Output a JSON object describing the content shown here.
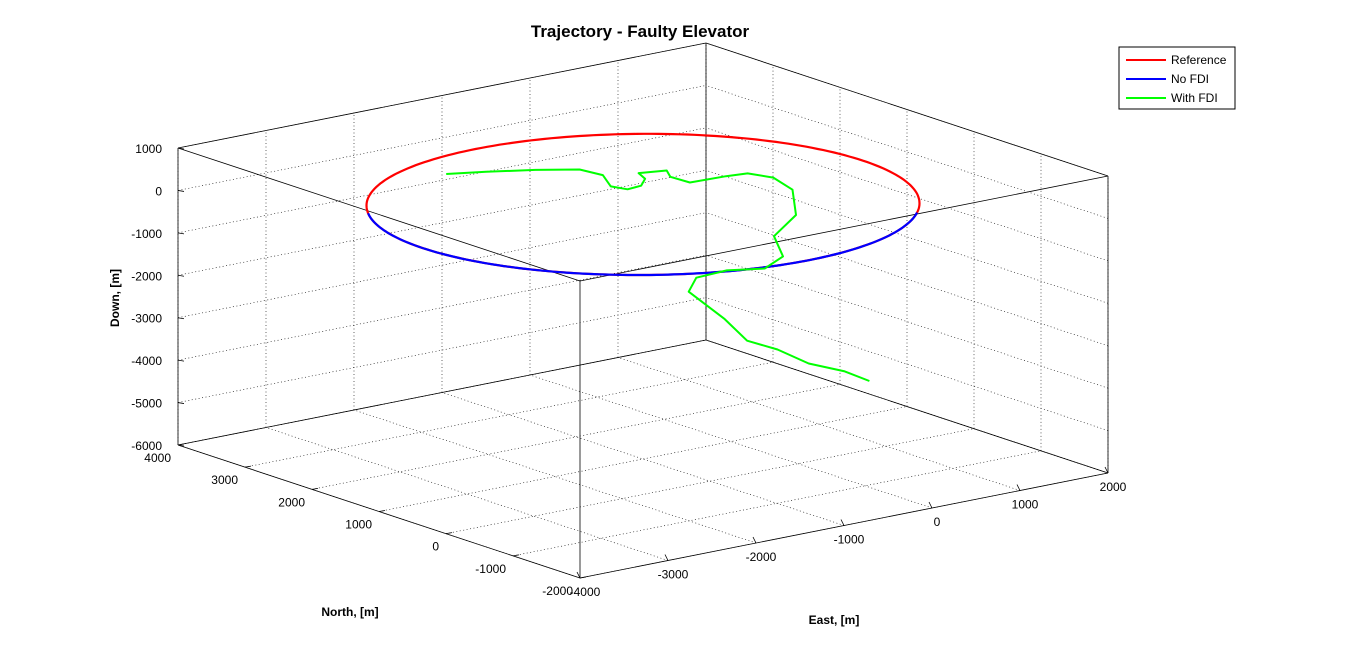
{
  "chart_data": {
    "type": "line3d",
    "title": "Trajectory - Faulty Elevator",
    "xlabel": "East, [m]",
    "ylabel": "North, [m]",
    "zlabel": "Down, [m]",
    "xlim": [
      -4000,
      2000
    ],
    "ylim": [
      -2000,
      4000
    ],
    "zlim": [
      -6000,
      1000
    ],
    "xticks": [
      "-4000",
      "-3000",
      "-2000",
      "-1000",
      "0",
      "1000",
      "2000"
    ],
    "yticks": [
      "-2000",
      "-1000",
      "0",
      "1000",
      "2000",
      "3000",
      "4000"
    ],
    "zticks": [
      "-6000",
      "-5000",
      "-4000",
      "-3000",
      "-2000",
      "-1000",
      "0",
      "1000"
    ],
    "grid": true,
    "legend_location": "top-right",
    "series": [
      {
        "name": "Reference",
        "color": "#ff0000",
        "shape": "circle",
        "center": {
          "east": -1000,
          "north": 1000,
          "down": 0
        },
        "radius": 2500
      },
      {
        "name": "No FDI",
        "color": "#0000ff",
        "shape": "circle",
        "center": {
          "east": -1000,
          "north": 1000,
          "down": 0
        },
        "radius": 2500
      },
      {
        "name": "With FDI",
        "color": "#00ff00",
        "points": [
          [
            -1790,
            2900,
            50
          ],
          [
            -1450,
            2750,
            40
          ],
          [
            -1050,
            2540,
            30
          ],
          [
            -700,
            2340,
            0
          ],
          [
            -520,
            2230,
            -150
          ],
          [
            -460,
            2190,
            -420
          ],
          [
            -330,
            2110,
            -500
          ],
          [
            -230,
            2040,
            -420
          ],
          [
            -200,
            2020,
            -260
          ],
          [
            -250,
            2050,
            -120
          ],
          [
            -30,
            1920,
            -80
          ],
          [
            -5,
            1900,
            -230
          ],
          [
            150,
            1810,
            -380
          ],
          [
            430,
            1640,
            -260
          ],
          [
            600,
            1540,
            -210
          ],
          [
            800,
            1420,
            -330
          ],
          [
            950,
            1330,
            -630
          ],
          [
            860,
            1160,
            -1100
          ],
          [
            550,
            1080,
            -1430
          ],
          [
            500,
            880,
            -1780
          ],
          [
            200,
            760,
            -1880
          ],
          [
            -200,
            800,
            -1780
          ],
          [
            -600,
            730,
            -1750
          ],
          [
            -800,
            580,
            -1920
          ],
          [
            -650,
            240,
            -2450
          ],
          [
            -700,
            -160,
            -2730
          ],
          [
            -500,
            -350,
            -2920
          ],
          [
            -350,
            -620,
            -3170
          ],
          [
            -100,
            -830,
            -3350
          ],
          [
            50,
            -1000,
            -3550
          ]
        ]
      }
    ]
  }
}
